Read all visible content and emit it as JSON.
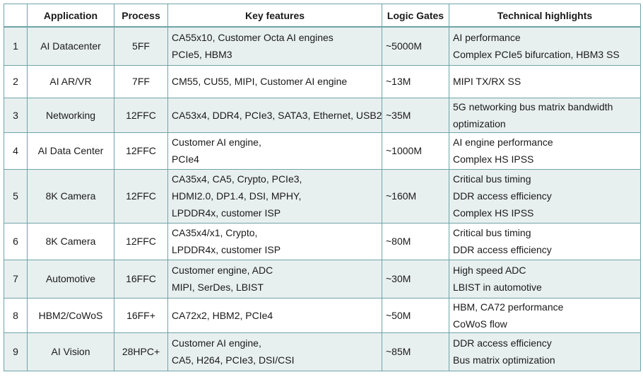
{
  "table": {
    "headers": {
      "num": "",
      "application": "Application",
      "process": "Process",
      "features": "Key features",
      "gates": "Logic Gates",
      "highlights": "Technical highlights"
    },
    "rows": [
      {
        "num": "1",
        "application": "AI Datacenter",
        "process": "5FF",
        "features": [
          "CA55x10, Customer Octa AI engines",
          "PCIe5, HBM3"
        ],
        "gates": "~5000M",
        "highlights": [
          "AI performance",
          "Complex PCIe5 bifurcation, HBM3 SS"
        ]
      },
      {
        "num": "2",
        "application": "AI AR/VR",
        "process": "7FF",
        "features": [
          "CM55, CU55, MIPI, Customer AI engine"
        ],
        "gates": "~13M",
        "highlights": [
          "MIPI TX/RX SS"
        ]
      },
      {
        "num": "3",
        "application": "Networking",
        "process": "12FFC",
        "features": [
          "CA53x4, DDR4, PCIe3, SATA3, Ethernet, USB2"
        ],
        "gates": "~35M",
        "highlights": [
          "5G networking bus matrix bandwidth",
          "optimization"
        ]
      },
      {
        "num": "4",
        "application": "AI Data Center",
        "process": "12FFC",
        "features": [
          "Customer AI engine,",
          "PCIe4"
        ],
        "gates": "~1000M",
        "highlights": [
          "AI engine performance",
          "Complex HS IPSS"
        ]
      },
      {
        "num": "5",
        "application": "8K Camera",
        "process": "12FFC",
        "features": [
          "CA35x4, CA5, Crypto, PCIe3,",
          "HDMI2.0, DP1.4, DSI, MPHY,",
          "LPDDR4x, customer ISP"
        ],
        "gates": "~160M",
        "highlights": [
          "Critical bus timing",
          "DDR access efficiency",
          "Complex HS IPSS"
        ]
      },
      {
        "num": "6",
        "application": "8K Camera",
        "process": "12FFC",
        "features": [
          "CA35x4/x1, Crypto,",
          "LPDDR4x, customer ISP"
        ],
        "gates": "~80M",
        "highlights": [
          "Critical bus timing",
          "DDR access efficiency"
        ]
      },
      {
        "num": "7",
        "application": "Automotive",
        "process": "16FFC",
        "features": [
          "Customer engine, ADC",
          "MIPI, SerDes, LBIST"
        ],
        "gates": "~30M",
        "highlights": [
          "High speed ADC",
          "LBIST in automotive"
        ]
      },
      {
        "num": "8",
        "application": "HBM2/CoWoS",
        "process": "16FF+",
        "features": [
          "CA72x2, HBM2, PCIe4"
        ],
        "gates": "~50M",
        "highlights": [
          "HBM, CA72 performance",
          "CoWoS flow"
        ]
      },
      {
        "num": "9",
        "application": "AI Vision",
        "process": "28HPC+",
        "features": [
          "Customer AI engine,",
          "CA5, H264, PCIe3, DSI/CSI"
        ],
        "gates": "~85M",
        "highlights": [
          "DDR access efficiency",
          "Bus matrix optimization"
        ]
      }
    ]
  },
  "colors": {
    "border": "#6fa3a8",
    "row_shade": "#e8f0ef",
    "row_plain": "#ffffff",
    "text": "#1a1a1a"
  }
}
